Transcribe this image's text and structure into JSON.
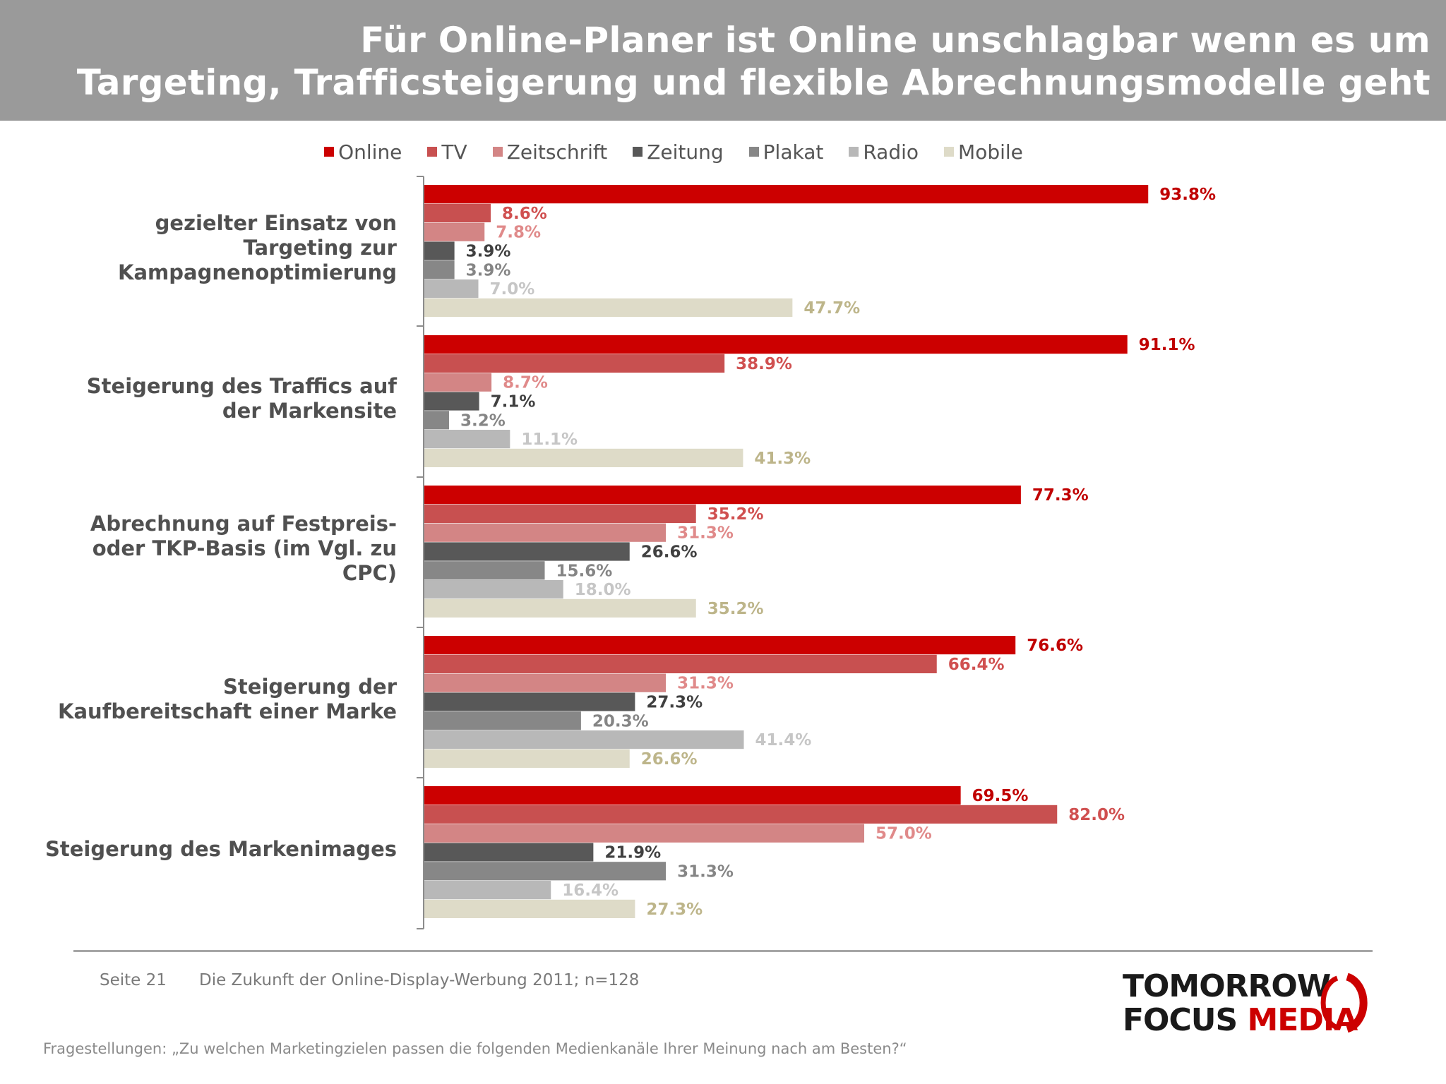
{
  "header": {
    "title_line1": "Für Online-Planer ist Online unschlagbar wenn es um",
    "title_line2": "Targeting, Trafficsteigerung und flexible Abrechnungsmodelle geht"
  },
  "chart_data": {
    "type": "bar",
    "orientation": "horizontal",
    "categories": [
      [
        "gezielter Einsatz von",
        "Targeting zur",
        "Kampagnenoptimierung"
      ],
      [
        "Steigerung des Traffics auf",
        "der Markensite"
      ],
      [
        "Abrechnung auf Festpreis-",
        "oder TKP-Basis (im Vgl. zu",
        "CPC)"
      ],
      [
        "Steigerung der",
        "Kaufbereitschaft einer Marke"
      ],
      [
        "Steigerung des Markenimages"
      ]
    ],
    "series": [
      {
        "name": "Online",
        "color": "#cc0000",
        "label_color": "#c00000",
        "values": [
          93.8,
          91.1,
          77.3,
          76.6,
          69.5
        ]
      },
      {
        "name": "TV",
        "color": "#c85050",
        "label_color": "#d05050",
        "values": [
          8.6,
          38.9,
          35.2,
          66.4,
          82.0
        ]
      },
      {
        "name": "Zeitschrift",
        "color": "#d38585",
        "label_color": "#e08a8a",
        "values": [
          7.8,
          8.7,
          31.3,
          31.3,
          57.0
        ]
      },
      {
        "name": "Zeitung",
        "color": "#585858",
        "label_color": "#404040",
        "values": [
          3.9,
          7.1,
          26.6,
          27.3,
          21.9
        ]
      },
      {
        "name": "Plakat",
        "color": "#878787",
        "label_color": "#858585",
        "values": [
          3.9,
          3.2,
          15.6,
          20.3,
          31.3
        ]
      },
      {
        "name": "Radio",
        "color": "#b8b8b8",
        "label_color": "#c6c6c6",
        "values": [
          7.0,
          11.1,
          18.0,
          41.4,
          16.4
        ]
      },
      {
        "name": "Mobile",
        "color": "#dedbc8",
        "label_color": "#bdb58a",
        "values": [
          47.7,
          41.3,
          35.2,
          26.6,
          27.3
        ]
      }
    ],
    "value_suffix": "%",
    "xlim": [
      0,
      100
    ],
    "legend": "top",
    "grid": false
  },
  "footer": {
    "page": "Seite 21",
    "source": "Die Zukunft der Online-Display-Werbung 2011; n=128",
    "question": "Fragestellungen: „Zu welchen Marketingzielen passen die folgenden Medienkanäle Ihrer Meinung nach am Besten?“"
  },
  "logo": {
    "line1": "TOMORROW",
    "line2_a": "FOCUS",
    "line2_b": "MEDIA"
  }
}
